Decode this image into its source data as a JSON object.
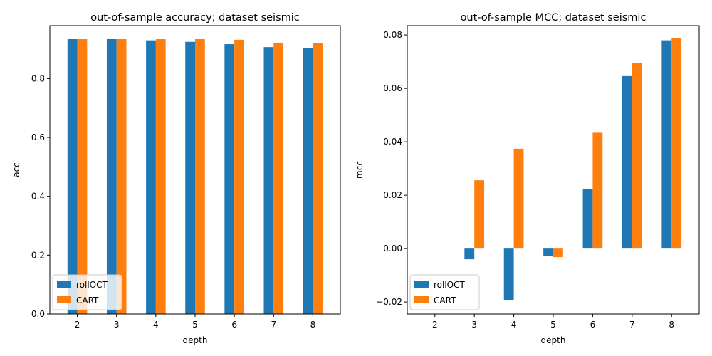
{
  "chart_data": [
    {
      "type": "bar",
      "title": "out-of-sample accuracy; dataset seismic",
      "xlabel": "depth",
      "ylabel": "acc",
      "categories": [
        "2",
        "3",
        "4",
        "5",
        "6",
        "7",
        "8"
      ],
      "ylim": [
        0,
        0.98
      ],
      "yticks": [
        0.0,
        0.2,
        0.4,
        0.6,
        0.8
      ],
      "ytick_labels": [
        "0.0",
        "0.2",
        "0.4",
        "0.6",
        "0.8"
      ],
      "series": [
        {
          "name": "rollOCT",
          "color": "#1f77b4",
          "values": [
            0.934,
            0.934,
            0.93,
            0.925,
            0.917,
            0.907,
            0.903
          ]
        },
        {
          "name": "CART",
          "color": "#ff7f0e",
          "values": [
            0.934,
            0.934,
            0.934,
            0.934,
            0.932,
            0.922,
            0.92
          ]
        }
      ],
      "legend": "lower-left",
      "grid": false
    },
    {
      "type": "bar",
      "title": "out-of-sample MCC; dataset seismic",
      "xlabel": "depth",
      "ylabel": "mcc",
      "categories": [
        "2",
        "3",
        "4",
        "5",
        "6",
        "7",
        "8"
      ],
      "ylim": [
        -0.0245,
        0.0835
      ],
      "yticks": [
        -0.02,
        0.0,
        0.02,
        0.04,
        0.06,
        0.08
      ],
      "ytick_labels": [
        "−0.02",
        "0.00",
        "0.02",
        "0.04",
        "0.06",
        "0.08"
      ],
      "series": [
        {
          "name": "rollOCT",
          "color": "#1f77b4",
          "values": [
            0.0,
            -0.004,
            -0.0193,
            -0.0028,
            0.0224,
            0.0646,
            0.078
          ]
        },
        {
          "name": "CART",
          "color": "#ff7f0e",
          "values": [
            0.0,
            0.0256,
            0.0374,
            -0.0032,
            0.0434,
            0.0696,
            0.0788
          ]
        }
      ],
      "legend": "lower-left",
      "grid": false
    }
  ]
}
